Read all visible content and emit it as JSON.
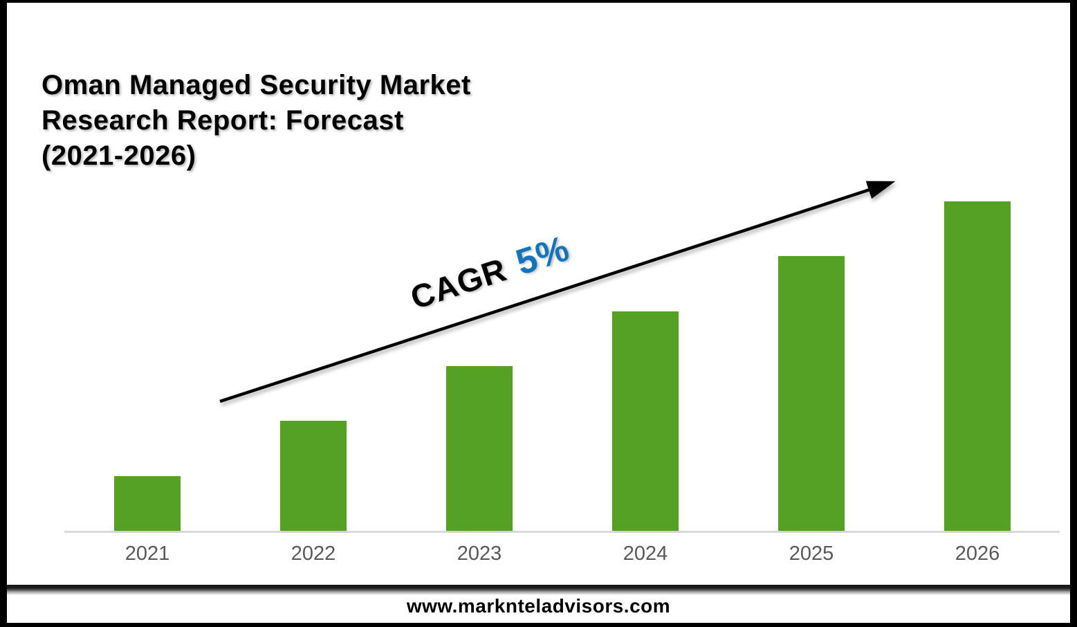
{
  "title": {
    "lines": [
      "Oman Managed Security Market",
      "Research Report: Forecast",
      "(2021-2026)"
    ]
  },
  "annotation": {
    "cagr_label": "CAGR",
    "cagr_value": "5%"
  },
  "footer": {
    "url": "www.marknteladvisors.com"
  },
  "colors": {
    "bar_green": "#54A124",
    "cagr_blue": "#1274BC",
    "axis_gray": "#D9D9D9",
    "label_gray": "#595959",
    "frame_black": "#000000"
  },
  "chart_data": {
    "type": "bar",
    "title": "Oman Managed Security Market Research Report: Forecast (2021-2026)",
    "categories": [
      "2021",
      "2022",
      "2023",
      "2024",
      "2025",
      "2026"
    ],
    "values": [
      1,
      2,
      3,
      4,
      5,
      6
    ],
    "value_note": "relative bar heights; no y-axis, gridlines or data labels are shown",
    "xlabel": "",
    "ylabel": "",
    "ylim": [
      0,
      6.2
    ],
    "grid": false,
    "legend": false,
    "bar_color": "#54A124",
    "annotations": [
      {
        "text": "CAGR 5%",
        "style": "rotated label above straight trend arrow rising from lower-left to upper-right"
      }
    ]
  }
}
